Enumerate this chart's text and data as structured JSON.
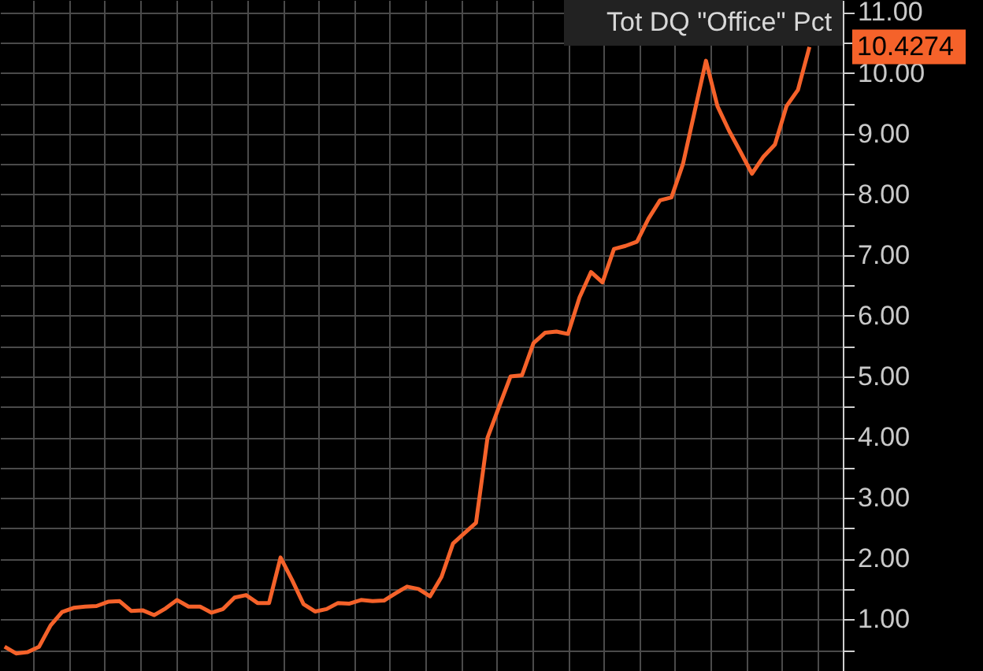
{
  "chart_data": {
    "type": "line",
    "categories": [
      null,
      null,
      null,
      null,
      null,
      null,
      null,
      null,
      null,
      null,
      null,
      null,
      null,
      null,
      null,
      null,
      null,
      null,
      null,
      null,
      null,
      null,
      null,
      null,
      null,
      null,
      null,
      null,
      null,
      null,
      null,
      null,
      null,
      null,
      null,
      null,
      null,
      null,
      null,
      null,
      null,
      null,
      null,
      null,
      null,
      null,
      null,
      null,
      null,
      null,
      null,
      null,
      null,
      null,
      null,
      null,
      null,
      null,
      null,
      null,
      null,
      null,
      null,
      null,
      null,
      null,
      null,
      null,
      null,
      null,
      null
    ],
    "series": [
      {
        "name": "Tot DQ \"Office\" Pct",
        "color": "#f5622a",
        "values": [
          0.55,
          0.44,
          0.46,
          0.55,
          0.9,
          1.12,
          1.19,
          1.21,
          1.22,
          1.29,
          1.3,
          1.14,
          1.15,
          1.07,
          1.18,
          1.32,
          1.21,
          1.21,
          1.11,
          1.17,
          1.36,
          1.4,
          1.27,
          1.27,
          2.02,
          1.65,
          1.25,
          1.13,
          1.17,
          1.27,
          1.26,
          1.32,
          1.3,
          1.31,
          1.43,
          1.54,
          1.5,
          1.38,
          1.7,
          2.25,
          2.42,
          2.59,
          3.99,
          4.5,
          5.0,
          5.02,
          5.55,
          5.72,
          5.74,
          5.7,
          6.3,
          6.72,
          6.55,
          7.1,
          7.15,
          7.22,
          7.6,
          7.9,
          7.95,
          8.5,
          9.35,
          10.2,
          9.45,
          9.05,
          8.7,
          8.34,
          8.62,
          8.82,
          9.45,
          9.72,
          10.4274
        ]
      }
    ],
    "ylim": [
      0.15,
      11.2
    ],
    "yticks": [
      {
        "value": 0.5,
        "label": null
      },
      {
        "value": 1,
        "label": "1.00"
      },
      {
        "value": 1.5,
        "label": null
      },
      {
        "value": 2,
        "label": "2.00"
      },
      {
        "value": 2.5,
        "label": null
      },
      {
        "value": 3,
        "label": "3.00"
      },
      {
        "value": 3.5,
        "label": null
      },
      {
        "value": 4,
        "label": "4.00"
      },
      {
        "value": 4.5,
        "label": null
      },
      {
        "value": 5,
        "label": "5.00"
      },
      {
        "value": 5.5,
        "label": null
      },
      {
        "value": 6,
        "label": "6.00"
      },
      {
        "value": 6.5,
        "label": null
      },
      {
        "value": 7,
        "label": "7.00"
      },
      {
        "value": 7.5,
        "label": null
      },
      {
        "value": 8,
        "label": "8.00"
      },
      {
        "value": 8.5,
        "label": null
      },
      {
        "value": 9,
        "label": "9.00"
      },
      {
        "value": 9.5,
        "label": null
      },
      {
        "value": 10,
        "label": "10.00"
      },
      {
        "value": 10.5,
        "label": null
      },
      {
        "value": 11,
        "label": "11.00"
      }
    ],
    "annotations": [
      "10.4274"
    ],
    "grid": true,
    "legend": "top right"
  }
}
